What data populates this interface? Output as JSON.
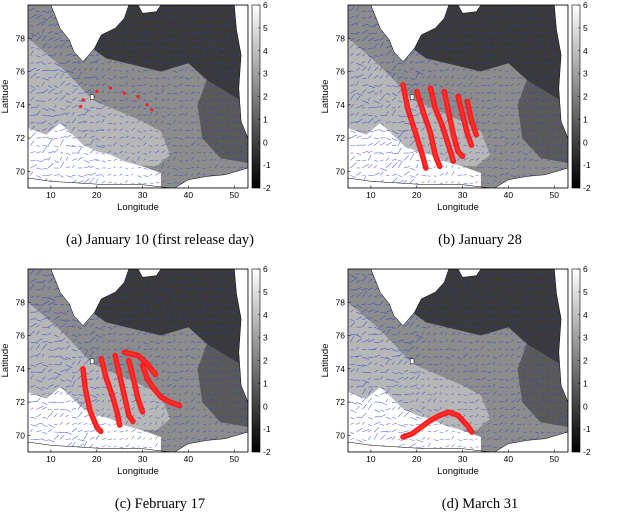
{
  "figure": {
    "panels": [
      {
        "caption": "(a) January 10 (first release day)",
        "chart_data": {
          "type": "heatmap",
          "xlabel": "Longitude",
          "ylabel": "Latitude",
          "xlim": [
            5,
            53
          ],
          "ylim": [
            69,
            80
          ],
          "xticks": [
            "10",
            "20",
            "30",
            "40",
            "50"
          ],
          "yticks": [
            "70",
            "72",
            "74",
            "76",
            "78"
          ],
          "colorbar": {
            "ticks": [
              "-2",
              "-1",
              "0",
              "1",
              "2",
              "3",
              "4",
              "5",
              "6"
            ],
            "range": [
              -2,
              6
            ]
          },
          "particles": [
            [
              17,
              74.3
            ],
            [
              20,
              74.8
            ],
            [
              23,
              75.0
            ],
            [
              26,
              74.7
            ],
            [
              29,
              74.5
            ],
            [
              31,
              74.0
            ],
            [
              16.5,
              73.9
            ],
            [
              32,
              73.7
            ]
          ]
        }
      },
      {
        "caption": "(b) January 28",
        "chart_data": {
          "type": "heatmap",
          "xlabel": "Longitude",
          "ylabel": "Latitude",
          "xlim": [
            5,
            53
          ],
          "ylim": [
            69,
            80
          ],
          "xticks": [
            "10",
            "20",
            "30",
            "40",
            "50"
          ],
          "yticks": [
            "70",
            "72",
            "74",
            "76",
            "78"
          ],
          "colorbar": {
            "ticks": [
              "-2",
              "-1",
              "0",
              "1",
              "2",
              "3",
              "4",
              "5",
              "6"
            ],
            "range": [
              -2,
              6
            ]
          },
          "particle_tracks": [
            [
              [
                17,
                75.2
              ],
              [
                18,
                73.8
              ],
              [
                19.5,
                72.5
              ],
              [
                21,
                71.2
              ],
              [
                22,
                70.2
              ]
            ],
            [
              [
                20,
                74.8
              ],
              [
                21.5,
                73.5
              ],
              [
                23,
                72.3
              ],
              [
                24,
                71.0
              ],
              [
                25,
                70.3
              ]
            ],
            [
              [
                23,
                75.0
              ],
              [
                24,
                73.8
              ],
              [
                25.5,
                72.8
              ],
              [
                27,
                71.5
              ],
              [
                28,
                70.6
              ]
            ],
            [
              [
                26,
                74.8
              ],
              [
                27,
                73.5
              ],
              [
                28,
                72.2
              ],
              [
                29,
                71.2
              ],
              [
                30,
                70.9
              ]
            ],
            [
              [
                29,
                74.5
              ],
              [
                30,
                73.4
              ],
              [
                31,
                72.3
              ],
              [
                32,
                71.5
              ]
            ],
            [
              [
                31,
                74.2
              ],
              [
                32,
                73.0
              ],
              [
                33,
                72.2
              ]
            ]
          ]
        }
      },
      {
        "caption": "(c) February 17",
        "chart_data": {
          "type": "heatmap",
          "xlabel": "Longitude",
          "ylabel": "Latitude",
          "xlim": [
            5,
            53
          ],
          "ylim": [
            69,
            80
          ],
          "xticks": [
            "10",
            "20",
            "30",
            "40",
            "50"
          ],
          "yticks": [
            "70",
            "72",
            "74",
            "76",
            "78"
          ],
          "colorbar": {
            "ticks": [
              "-2",
              "-1",
              "0",
              "1",
              "2",
              "3",
              "4",
              "5",
              "6"
            ],
            "range": [
              -2,
              6
            ]
          },
          "particle_tracks": [
            [
              [
                17,
                74.0
              ],
              [
                17.5,
                72.8
              ],
              [
                18.5,
                71.5
              ],
              [
                20,
                70.5
              ],
              [
                21,
                70.2
              ]
            ],
            [
              [
                21,
                74.6
              ],
              [
                22,
                73.5
              ],
              [
                23.5,
                72.3
              ],
              [
                24.5,
                71.3
              ],
              [
                25,
                70.6
              ]
            ],
            [
              [
                24,
                74.8
              ],
              [
                25,
                73.6
              ],
              [
                26,
                72.4
              ],
              [
                27,
                71.2
              ],
              [
                28,
                70.8
              ]
            ],
            [
              [
                27,
                74.5
              ],
              [
                28,
                73.4
              ],
              [
                29,
                72.2
              ],
              [
                30,
                71.4
              ]
            ],
            [
              [
                30,
                74.2
              ],
              [
                31,
                73.4
              ],
              [
                32.5,
                72.8
              ],
              [
                34,
                72.3
              ],
              [
                36,
                72.0
              ],
              [
                38,
                71.8
              ]
            ],
            [
              [
                26,
                75.0
              ],
              [
                29,
                74.8
              ],
              [
                31,
                74.3
              ],
              [
                33,
                73.6
              ]
            ]
          ]
        }
      },
      {
        "caption": "(d) March 31",
        "chart_data": {
          "type": "heatmap",
          "xlabel": "Longitude",
          "ylabel": "Latitude",
          "xlim": [
            5,
            53
          ],
          "ylim": [
            69,
            80
          ],
          "xticks": [
            "10",
            "20",
            "30",
            "40",
            "50"
          ],
          "yticks": [
            "70",
            "72",
            "74",
            "76",
            "78"
          ],
          "colorbar": {
            "ticks": [
              "-2",
              "-1",
              "0",
              "1",
              "2",
              "3",
              "4",
              "5",
              "6"
            ],
            "range": [
              -2,
              6
            ]
          },
          "particle_tracks": [
            [
              [
                17,
                69.9
              ],
              [
                19,
                70.1
              ],
              [
                21,
                70.5
              ],
              [
                23,
                70.9
              ],
              [
                25,
                71.2
              ],
              [
                27,
                71.4
              ],
              [
                29,
                71.2
              ],
              [
                31,
                70.6
              ],
              [
                32,
                70.2
              ]
            ]
          ]
        }
      }
    ]
  }
}
